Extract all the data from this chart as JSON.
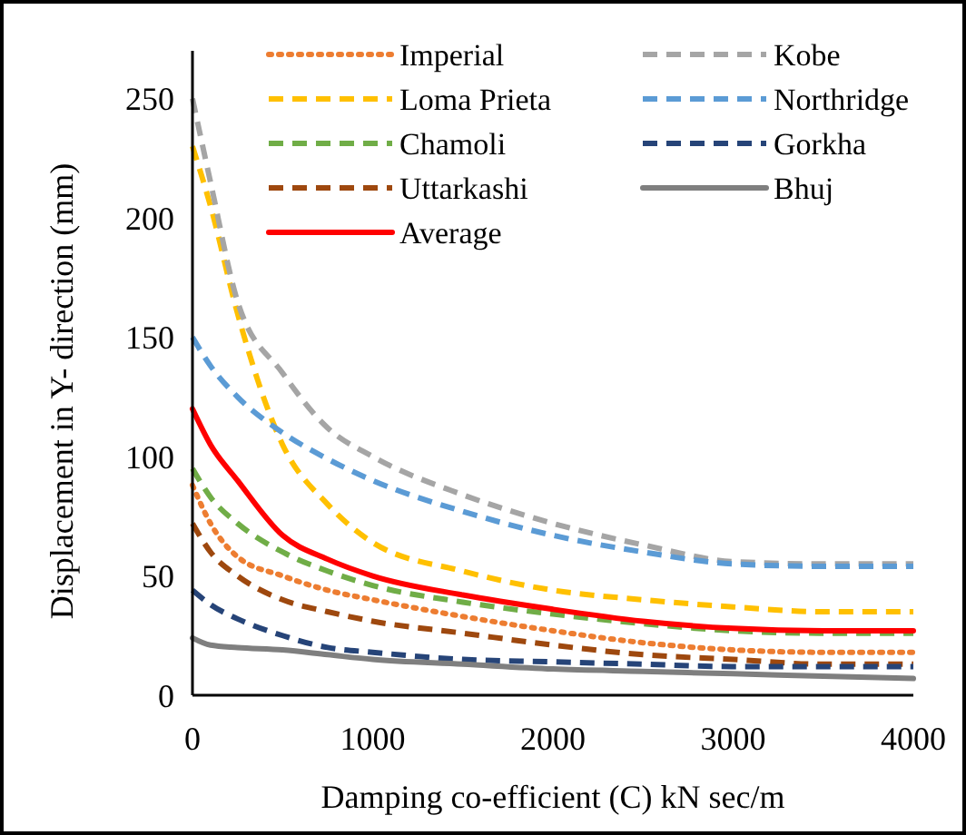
{
  "chart_data": {
    "type": "line",
    "xlabel": "Damping co-efficient (C) kN sec/m",
    "ylabel": "Displacement in Y- direction (mm)",
    "x": [
      0,
      100,
      250,
      500,
      750,
      1000,
      1500,
      2000,
      2500,
      3000,
      3500,
      4000
    ],
    "xlim": [
      0,
      4000
    ],
    "xticks": [
      0,
      1000,
      2000,
      3000,
      4000
    ],
    "ylim": [
      0,
      270
    ],
    "yticks": [
      0,
      50,
      100,
      150,
      200,
      250
    ],
    "grid": false,
    "legend": "top right",
    "marker": "none",
    "series": [
      {
        "name": "Imperial",
        "color": "#ed7d31",
        "line_style": "dotted",
        "values": [
          88,
          72,
          58,
          50,
          44,
          40,
          33,
          27,
          22,
          19,
          18,
          18
        ]
      },
      {
        "name": "Loma Prieta",
        "color": "#ffc000",
        "line_style": "dashed",
        "values": [
          230,
          205,
          160,
          105,
          80,
          64,
          52,
          44,
          40,
          37,
          35,
          35
        ]
      },
      {
        "name": "Chamoli",
        "color": "#70ad47",
        "line_style": "dashed",
        "values": [
          95,
          83,
          72,
          60,
          52,
          46,
          39,
          34,
          30,
          27,
          26,
          26
        ]
      },
      {
        "name": "Uttarkashi",
        "color": "#9e480e",
        "line_style": "dashed",
        "values": [
          72,
          60,
          50,
          40,
          35,
          31,
          26,
          21,
          17,
          15,
          13,
          13
        ]
      },
      {
        "name": "Average",
        "color": "#ff0000",
        "line_style": "solid",
        "values": [
          120,
          105,
          90,
          67,
          57,
          50,
          42,
          36,
          31,
          28,
          27,
          27
        ]
      },
      {
        "name": "Kobe",
        "color": "#a5a5a5",
        "line_style": "dashed",
        "values": [
          250,
          215,
          165,
          135,
          112,
          100,
          84,
          72,
          63,
          56,
          55,
          55
        ]
      },
      {
        "name": "Northridge",
        "color": "#5b9bd5",
        "line_style": "dashed",
        "values": [
          150,
          138,
          125,
          110,
          99,
          90,
          77,
          67,
          60,
          55,
          54,
          54
        ]
      },
      {
        "name": "Gorkha",
        "color": "#264478",
        "line_style": "dashed",
        "values": [
          44,
          38,
          32,
          25,
          20,
          18,
          15,
          14,
          13,
          12,
          12,
          12
        ]
      },
      {
        "name": "Bhuj",
        "color": "#7f7f7f",
        "line_style": "solid",
        "values": [
          24,
          21,
          20,
          19,
          17,
          15,
          13,
          11,
          10,
          9,
          8,
          7
        ]
      }
    ]
  }
}
